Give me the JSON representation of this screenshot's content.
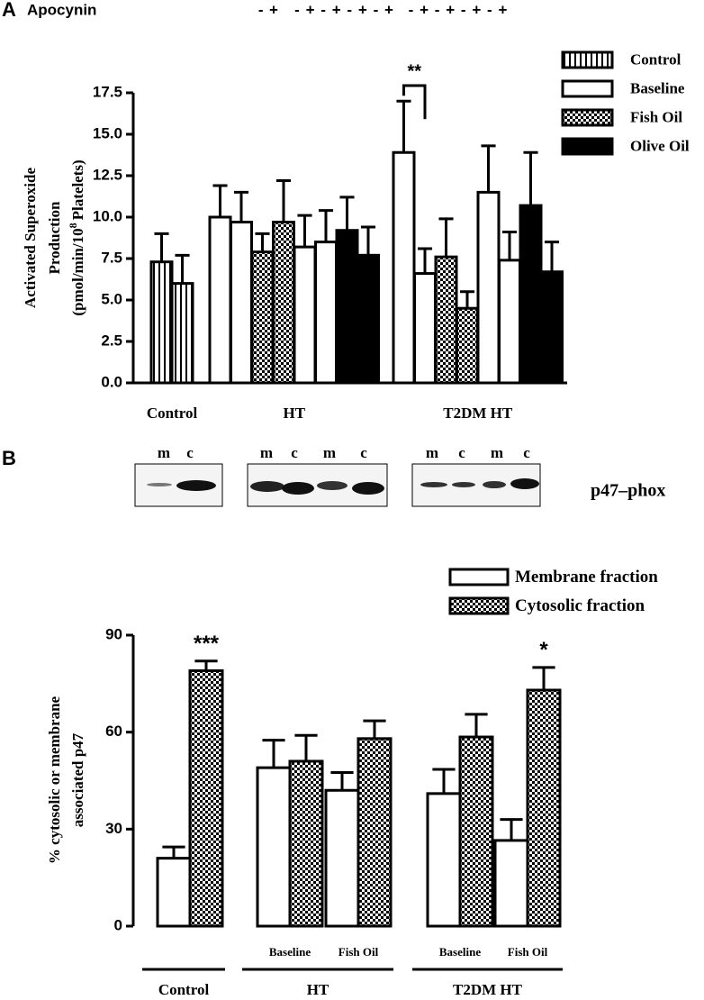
{
  "panels": [
    "A",
    "B"
  ],
  "blot": {
    "lanes": [
      "m",
      "c",
      "m",
      "c",
      "m",
      "c",
      "m",
      "c",
      "m",
      "c"
    ],
    "label": "p47–phox"
  },
  "chart_data": [
    {
      "type": "bar",
      "apocynin_label": "Apocynin",
      "categories": [
        "-",
        "+",
        "-",
        "+",
        "-",
        "+",
        "-",
        "+",
        "-",
        "+",
        "-",
        "+",
        "-",
        "+",
        "-",
        "+",
        "-",
        "+"
      ],
      "groups": [
        "Control",
        "HT",
        "T2DM HT"
      ],
      "ylabel": [
        "Activated Superoxide",
        "Production",
        "(pmol/min/10",
        "8",
        "Platelets)"
      ],
      "ylim": [
        0,
        17.5
      ],
      "yticks": [
        {
          "value": 0,
          "label": "0.0"
        },
        2.5,
        {
          "value": 5,
          "label": "5.0"
        },
        7.5,
        {
          "value": 10,
          "label": "10.0"
        },
        12.5,
        {
          "value": 15,
          "label": "15.0"
        },
        17.5
      ],
      "series": [
        {
          "name": "Control",
          "color": "#ffffff",
          "pattern": "stripes",
          "values": [
            7.3,
            6.0,
            null,
            null,
            null,
            null,
            null,
            null,
            null,
            null,
            null,
            null,
            null,
            null,
            null,
            null,
            null,
            null
          ],
          "errors": [
            1.7,
            1.7,
            null,
            null,
            null,
            null,
            null,
            null,
            null,
            null,
            null,
            null,
            null,
            null,
            null,
            null,
            null,
            null
          ]
        },
        {
          "name": "Baseline",
          "color": "#ffffff",
          "pattern": "solid",
          "values": [
            null,
            null,
            10.0,
            9.7,
            null,
            null,
            8.2,
            8.5,
            null,
            null,
            13.9,
            6.6,
            null,
            null,
            11.5,
            7.4,
            null,
            null
          ],
          "errors": [
            null,
            null,
            1.9,
            1.8,
            null,
            null,
            1.9,
            1.9,
            null,
            null,
            3.1,
            1.5,
            null,
            null,
            2.8,
            1.7,
            null,
            null
          ],
          "annotations": [
            null,
            null,
            null,
            null,
            null,
            null,
            null,
            null,
            null,
            null,
            "**",
            null,
            null,
            null,
            null,
            null,
            null,
            null
          ]
        },
        {
          "name": "Fish Oil",
          "color": "#ffffff",
          "pattern": "checker",
          "values": [
            null,
            null,
            null,
            null,
            7.9,
            9.7,
            null,
            null,
            null,
            null,
            null,
            null,
            7.6,
            4.5,
            null,
            null,
            null,
            null
          ],
          "errors": [
            null,
            null,
            null,
            null,
            1.1,
            2.5,
            null,
            null,
            null,
            null,
            null,
            null,
            2.3,
            1.0,
            null,
            null,
            null,
            null
          ]
        },
        {
          "name": "Olive Oil",
          "color": "#000000",
          "pattern": "solid",
          "values": [
            null,
            null,
            null,
            null,
            null,
            null,
            null,
            null,
            9.2,
            7.7,
            null,
            null,
            null,
            null,
            null,
            null,
            10.7,
            6.7
          ],
          "errors": [
            null,
            null,
            null,
            null,
            null,
            null,
            null,
            null,
            2.0,
            1.7,
            null,
            null,
            null,
            null,
            null,
            null,
            3.2,
            1.8
          ]
        }
      ]
    },
    {
      "type": "bar",
      "categories": [
        null,
        "Baseline",
        "Fish Oil",
        "Baseline",
        "Fish Oil"
      ],
      "groups": [
        "Control",
        "HT",
        "T2DM HT"
      ],
      "ylabel": [
        "% cytosolic or membrane",
        "associated p47"
      ],
      "ylim": [
        0,
        90
      ],
      "yticks": [
        0,
        30,
        60,
        90
      ],
      "series": [
        {
          "name": "Membrane fraction",
          "color": "#ffffff",
          "pattern": "solid",
          "values": [
            21,
            49,
            42,
            41,
            26.5
          ],
          "errors": [
            3.5,
            8.5,
            5.5,
            7.5,
            6.5
          ]
        },
        {
          "name": "Cytosolic fraction",
          "color": "#ffffff",
          "pattern": "checker",
          "values": [
            79,
            51,
            58,
            58.5,
            73
          ],
          "errors": [
            3,
            8,
            5.5,
            7,
            7
          ],
          "annotations": [
            "***",
            null,
            null,
            null,
            "*"
          ]
        }
      ]
    }
  ]
}
